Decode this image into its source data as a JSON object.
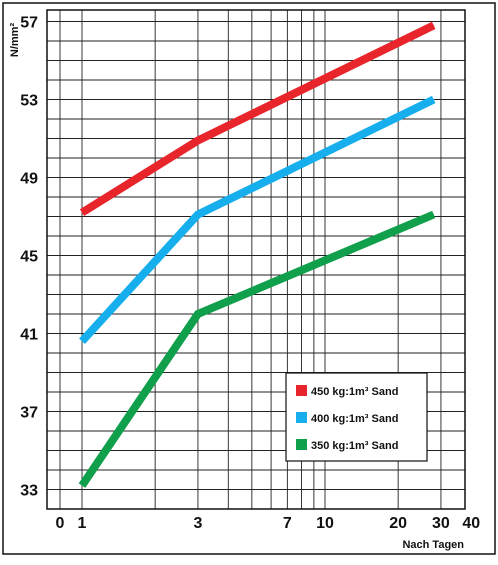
{
  "chart_data": {
    "type": "line",
    "title": "",
    "xlabel": "Nach Tagen",
    "ylabel": "N/mm²",
    "x_scale": "log",
    "x_ticks": [
      {
        "value": 0,
        "label": "0"
      },
      {
        "value": 1,
        "label": "1"
      },
      {
        "value": 3,
        "label": "3"
      },
      {
        "value": 7,
        "label": "7"
      },
      {
        "value": 10,
        "label": "10"
      },
      {
        "value": 20,
        "label": "20"
      },
      {
        "value": 30,
        "label": "30"
      },
      {
        "value": 40,
        "label": "40"
      }
    ],
    "y_ticks": [
      {
        "value": 33,
        "label": "33"
      },
      {
        "value": 37,
        "label": "37"
      },
      {
        "value": 41,
        "label": "41"
      },
      {
        "value": 45,
        "label": "45"
      },
      {
        "value": 49,
        "label": "49"
      },
      {
        "value": 53,
        "label": "53"
      },
      {
        "value": 57,
        "label": "57"
      }
    ],
    "ylim": [
      32,
      57.3
    ],
    "grid": true,
    "legend_position": "bottom-right",
    "series": [
      {
        "name": "450 kg:1m³ Sand",
        "color": "#e8252b",
        "x": [
          1,
          3,
          28
        ],
        "y": [
          47.2,
          50.9,
          56.8
        ]
      },
      {
        "name": "400 kg:1m³ Sand",
        "color": "#16aeec",
        "x": [
          1,
          3,
          28
        ],
        "y": [
          40.6,
          47.1,
          53.0
        ]
      },
      {
        "name": "350 kg:1m³ Sand",
        "color": "#109f4a",
        "x": [
          1,
          3,
          28
        ],
        "y": [
          33.2,
          42.0,
          47.1
        ]
      }
    ]
  }
}
